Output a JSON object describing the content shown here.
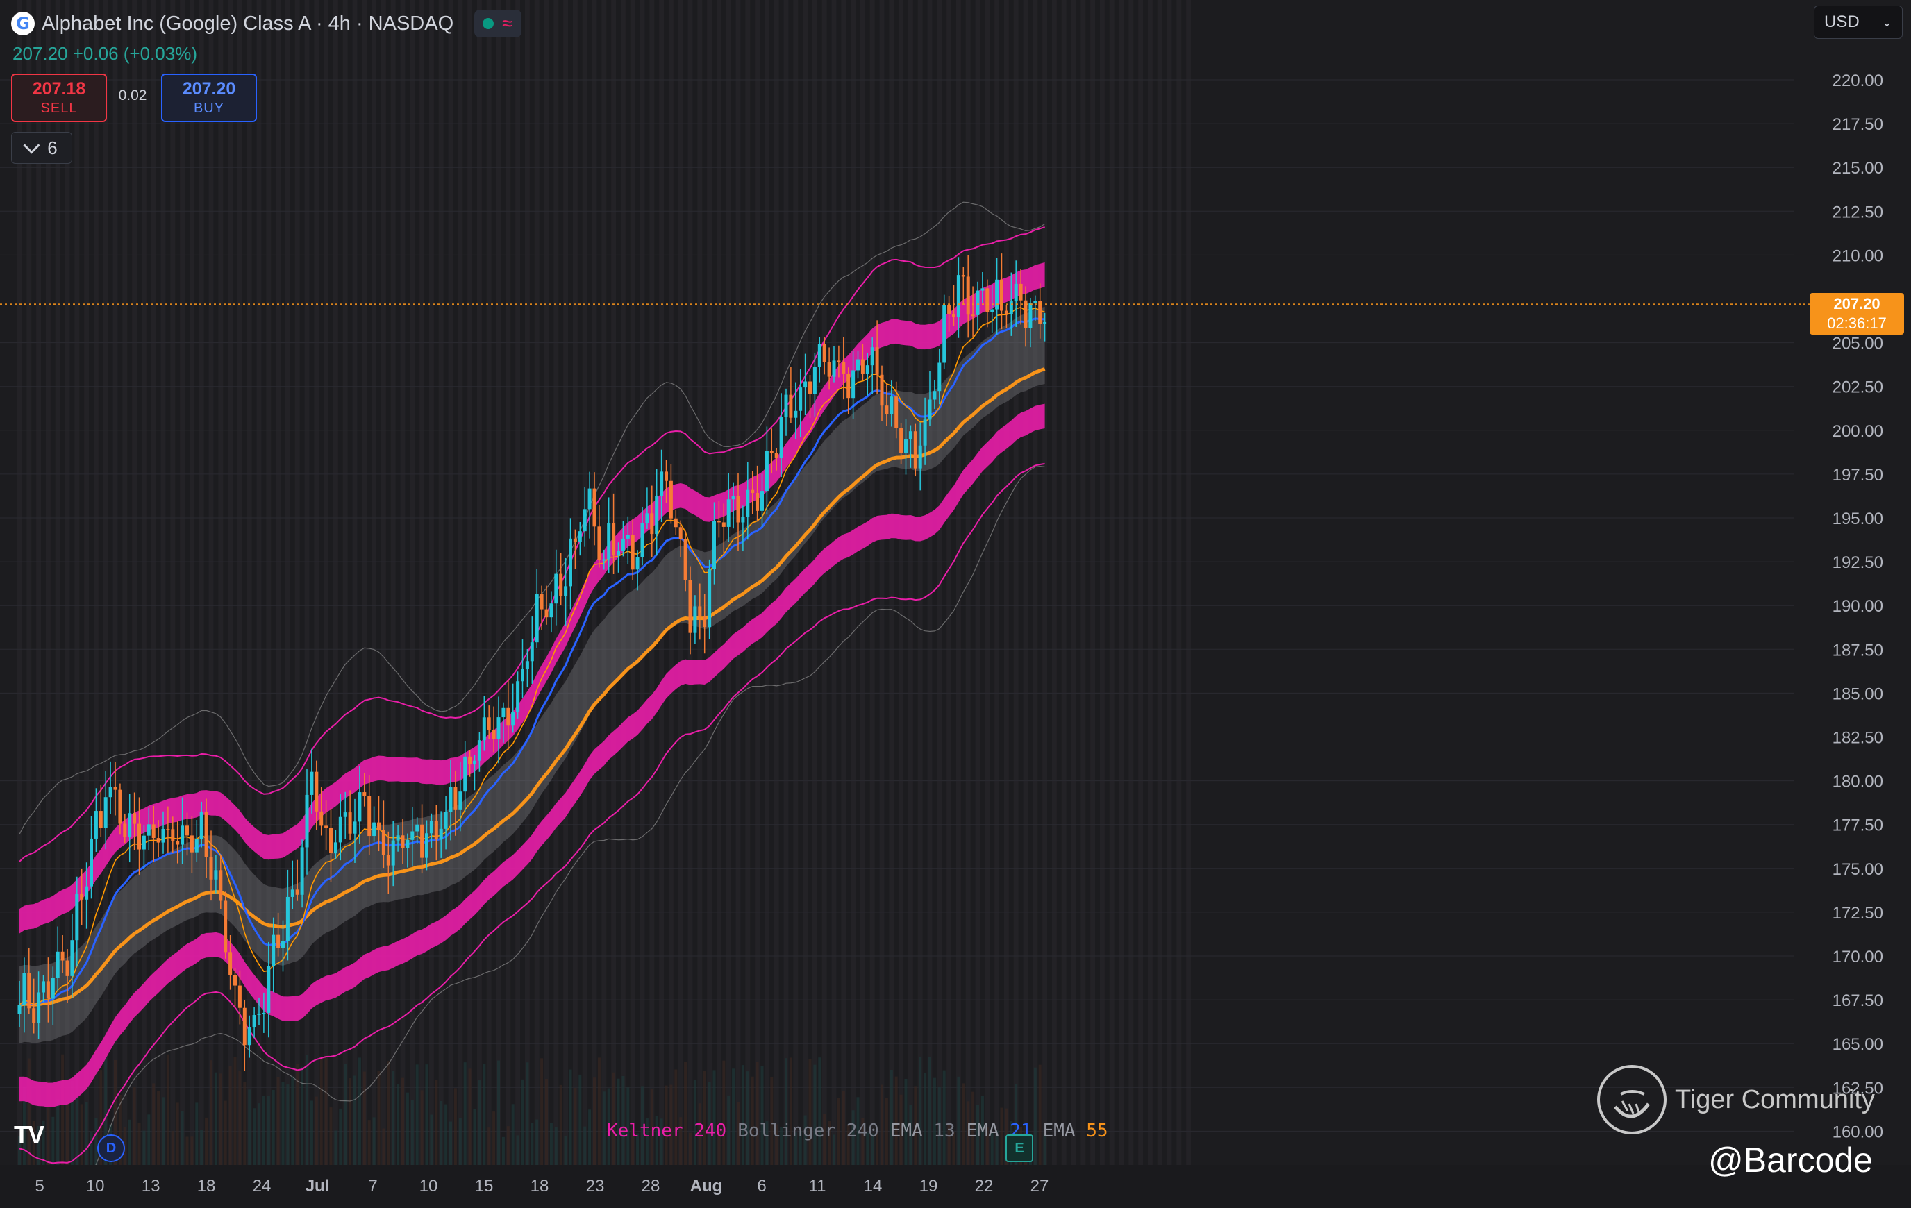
{
  "header": {
    "title": "Alphabet Inc (Google) Class A · 4h · NASDAQ",
    "logo_letter": "G",
    "wave_icon": "≈",
    "last_change": "207.20 +0.06 (+0.03%)"
  },
  "trade": {
    "sell_price": "207.18",
    "sell_label": "SELL",
    "spread": "0.02",
    "buy_price": "207.20",
    "buy_label": "BUY"
  },
  "indicator_toggle": {
    "count": "6"
  },
  "currency": "USD",
  "last_price": {
    "price": "207.20",
    "countdown": "02:36:17"
  },
  "legend": [
    {
      "name": "Keltner",
      "param": "240",
      "name_color": "#e91ea8",
      "param_color": "#e91ea8"
    },
    {
      "name": "Bollinger",
      "param": "240",
      "name_color": "#787b86",
      "param_color": "#787b86"
    },
    {
      "name": "EMA",
      "param": "13",
      "name_color": "#9598a1",
      "param_color": "#787b86"
    },
    {
      "name": "EMA",
      "param": "21",
      "name_color": "#9598a1",
      "param_color": "#2962ff"
    },
    {
      "name": "EMA",
      "param": "55",
      "name_color": "#9598a1",
      "param_color": "#f7931a"
    }
  ],
  "markers": {
    "dividend": "D",
    "earnings": "E"
  },
  "watermark": {
    "brand": "Tiger Community",
    "handle": "@Barcode"
  },
  "colors": {
    "up": "#26c6da",
    "down": "#f57c35",
    "keltner": "#e91ea8",
    "bollinger": "#9e9e9e",
    "ema13": "#ff9800",
    "ema21": "#2962ff",
    "ema55": "#f7931a",
    "background": "#1c1c1f"
  },
  "chart_data": {
    "type": "candlestick",
    "title": "Alphabet Inc (Google) Class A · 4h · NASDAQ",
    "ylim": [
      160,
      221.5
    ],
    "y_ticks": [
      220,
      217.5,
      215,
      212.5,
      210,
      207.5,
      205,
      202.5,
      200,
      197.5,
      195,
      192.5,
      190,
      187.5,
      185,
      182.5,
      180,
      177.5,
      175,
      172.5,
      170,
      167.5,
      165,
      162.5,
      160
    ],
    "x_ticks": [
      {
        "label": "5",
        "i": 4
      },
      {
        "label": "10",
        "i": 15
      },
      {
        "label": "13",
        "i": 26
      },
      {
        "label": "18",
        "i": 37
      },
      {
        "label": "24",
        "i": 48
      },
      {
        "label": "Jul",
        "i": 59
      },
      {
        "label": "7",
        "i": 70
      },
      {
        "label": "10",
        "i": 81
      },
      {
        "label": "15",
        "i": 92
      },
      {
        "label": "18",
        "i": 103
      },
      {
        "label": "23",
        "i": 114
      },
      {
        "label": "28",
        "i": 125
      },
      {
        "label": "Aug",
        "i": 136
      },
      {
        "label": "6",
        "i": 147
      },
      {
        "label": "11",
        "i": 158
      },
      {
        "label": "14",
        "i": 169
      },
      {
        "label": "19",
        "i": 180
      },
      {
        "label": "22",
        "i": 191
      },
      {
        "label": "27",
        "i": 202
      }
    ],
    "n_bars": 215,
    "close_anchors": [
      [
        0,
        167.8
      ],
      [
        4,
        167.2
      ],
      [
        7,
        169.0
      ],
      [
        10,
        169.5
      ],
      [
        14,
        175.0
      ],
      [
        18,
        179.5
      ],
      [
        22,
        177.5
      ],
      [
        26,
        176.5
      ],
      [
        30,
        176.8
      ],
      [
        34,
        177.0
      ],
      [
        38,
        176.8
      ],
      [
        42,
        173.0
      ],
      [
        45,
        167.5
      ],
      [
        48,
        165.5
      ],
      [
        51,
        167.8
      ],
      [
        54,
        171.0
      ],
      [
        58,
        174.5
      ],
      [
        61,
        180.5
      ],
      [
        64,
        176.0
      ],
      [
        68,
        177.5
      ],
      [
        72,
        178.5
      ],
      [
        76,
        176.0
      ],
      [
        80,
        176.5
      ],
      [
        84,
        177.0
      ],
      [
        88,
        177.5
      ],
      [
        92,
        180.0
      ],
      [
        96,
        182.0
      ],
      [
        100,
        183.0
      ],
      [
        104,
        185.5
      ],
      [
        108,
        189.5
      ],
      [
        112,
        190.5
      ],
      [
        116,
        193.5
      ],
      [
        118,
        196.5
      ],
      [
        121,
        193.0
      ],
      [
        124,
        193.5
      ],
      [
        128,
        193.0
      ],
      [
        132,
        195.5
      ],
      [
        135,
        197.0
      ],
      [
        138,
        193.5
      ],
      [
        140,
        189.5
      ],
      [
        142,
        188.5
      ],
      [
        145,
        193.5
      ],
      [
        148,
        195.5
      ],
      [
        152,
        195.5
      ],
      [
        156,
        197.5
      ],
      [
        159,
        200.5
      ],
      [
        163,
        202.0
      ],
      [
        166,
        203.5
      ],
      [
        170,
        203.5
      ],
      [
        174,
        203.0
      ],
      [
        178,
        204.0
      ],
      [
        181,
        201.5
      ],
      [
        184,
        199.5
      ],
      [
        187,
        198.5
      ],
      [
        190,
        201.5
      ],
      [
        193,
        206.0
      ],
      [
        196,
        208.5
      ],
      [
        199,
        207.0
      ],
      [
        202,
        207.0
      ],
      [
        204,
        207.2
      ]
    ],
    "series": [
      {
        "name": "Keltner 240"
      },
      {
        "name": "Bollinger 240"
      },
      {
        "name": "EMA 13"
      },
      {
        "name": "EMA 21"
      },
      {
        "name": "EMA 55"
      }
    ],
    "last_price": 207.2
  }
}
